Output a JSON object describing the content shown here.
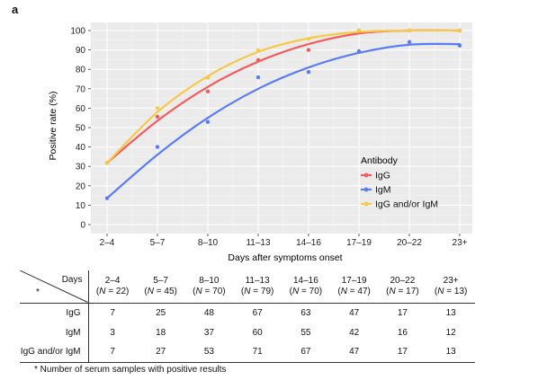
{
  "panel_label": "a",
  "chart_data": {
    "type": "scatter",
    "title": "",
    "xlabel": "Days after symptoms onset",
    "ylabel": "Positive rate (%)",
    "categories": [
      "2–4",
      "5–7",
      "8–10",
      "11–13",
      "14–16",
      "17–19",
      "20–22",
      "23+"
    ],
    "ylim": [
      0,
      100
    ],
    "yticks": [
      0,
      10,
      20,
      30,
      40,
      50,
      60,
      70,
      80,
      90,
      100
    ],
    "grid": true,
    "legend": {
      "title": "Antibody",
      "position": "right-center"
    },
    "series": [
      {
        "name": "IgG",
        "color": "#f25c5c",
        "values": [
          31.8,
          55.6,
          68.6,
          84.8,
          90.0,
          100.0,
          100.0,
          100.0
        ],
        "trend": [
          31.8,
          53.5,
          71.0,
          84.0,
          93.0,
          98.5,
          100.0,
          100.0
        ]
      },
      {
        "name": "IgM",
        "color": "#5b7cf5",
        "values": [
          13.6,
          40.0,
          52.9,
          75.9,
          78.6,
          89.4,
          94.1,
          92.3
        ],
        "trend": [
          13.6,
          36.0,
          55.0,
          70.0,
          81.0,
          88.5,
          92.7,
          93.0
        ]
      },
      {
        "name": "IgG and/or IgM",
        "color": "#f7c948",
        "values": [
          31.8,
          60.0,
          75.7,
          89.9,
          95.7,
          100.0,
          100.0,
          100.0
        ],
        "trend": [
          31.8,
          58.0,
          76.5,
          89.0,
          96.0,
          99.3,
          100.0,
          100.0
        ]
      }
    ]
  },
  "table": {
    "corner_days": "Days",
    "corner_star": "*",
    "columns": [
      {
        "days": "2–4",
        "n_label": "N",
        "n": "22"
      },
      {
        "days": "5–7",
        "n_label": "N",
        "n": "45"
      },
      {
        "days": "8–10",
        "n_label": "N",
        "n": "70"
      },
      {
        "days": "11–13",
        "n_label": "N",
        "n": "79"
      },
      {
        "days": "14–16",
        "n_label": "N",
        "n": "70"
      },
      {
        "days": "17–19",
        "n_label": "N",
        "n": "47"
      },
      {
        "days": "20–22",
        "n_label": "N",
        "n": "17"
      },
      {
        "days": "23+",
        "n_label": "N",
        "n": "13"
      }
    ],
    "rows": [
      {
        "label": "IgG",
        "values": [
          "7",
          "25",
          "48",
          "67",
          "63",
          "47",
          "17",
          "13"
        ]
      },
      {
        "label": "IgM",
        "values": [
          "3",
          "18",
          "37",
          "60",
          "55",
          "42",
          "16",
          "12"
        ]
      },
      {
        "label": "IgG and/or IgM",
        "values": [
          "7",
          "27",
          "53",
          "71",
          "67",
          "47",
          "17",
          "13"
        ]
      }
    ]
  },
  "footnote": "* Number of serum samples with positive results"
}
